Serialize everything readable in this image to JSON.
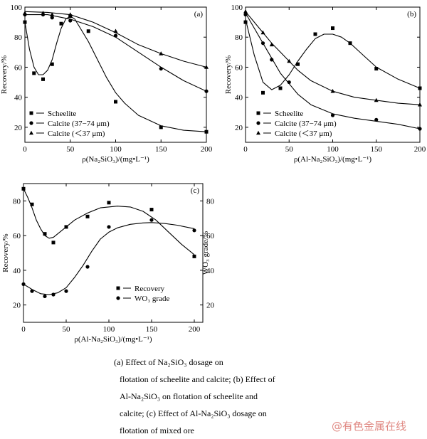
{
  "chart_data": [
    {
      "type": "line",
      "panel_label": "(a)",
      "xlabel": "ρ(Na₂SiO₃)/(mg•L⁻¹)",
      "ylabel": "Recovery/%",
      "xlim": [
        0,
        200
      ],
      "ylim": [
        10,
        100
      ],
      "xticks": [
        0,
        50,
        100,
        150,
        200
      ],
      "yticks": [
        20,
        40,
        60,
        80,
        100
      ],
      "legend": "bottom-left",
      "series": [
        {
          "name": "Scheelite",
          "marker": "square",
          "points": [
            [
              0,
              90
            ],
            [
              10,
              56
            ],
            [
              20,
              52
            ],
            [
              30,
              62
            ],
            [
              40,
              89
            ],
            [
              50,
              94
            ],
            [
              70,
              84
            ],
            [
              100,
              37
            ],
            [
              150,
              20
            ],
            [
              200,
              17
            ]
          ],
          "curve": [
            [
              0,
              90
            ],
            [
              5,
              72
            ],
            [
              10,
              60
            ],
            [
              15,
              55
            ],
            [
              20,
              55
            ],
            [
              25,
              58
            ],
            [
              30,
              65
            ],
            [
              35,
              76
            ],
            [
              40,
              86
            ],
            [
              45,
              92
            ],
            [
              50,
              94
            ],
            [
              55,
              92
            ],
            [
              60,
              87
            ],
            [
              70,
              77
            ],
            [
              80,
              65
            ],
            [
              90,
              53
            ],
            [
              100,
              43
            ],
            [
              110,
              36
            ],
            [
              125,
              28
            ],
            [
              150,
              21
            ],
            [
              175,
              18
            ],
            [
              200,
              17
            ]
          ]
        },
        {
          "name": "Calcite (37−74 μm)",
          "marker": "circle",
          "points": [
            [
              0,
              95
            ],
            [
              20,
              95
            ],
            [
              30,
              93
            ],
            [
              50,
              91
            ],
            [
              100,
              81
            ],
            [
              150,
              59
            ],
            [
              200,
              44
            ]
          ],
          "curve": [
            [
              0,
              95
            ],
            [
              25,
              95
            ],
            [
              50,
              92
            ],
            [
              75,
              87
            ],
            [
              100,
              80
            ],
            [
              125,
              70
            ],
            [
              150,
              60
            ],
            [
              175,
              51
            ],
            [
              200,
              44
            ]
          ]
        },
        {
          "name": "Calcite (＜37 μm)",
          "marker": "triangle",
          "points": [
            [
              0,
              96
            ],
            [
              20,
              96
            ],
            [
              30,
              95
            ],
            [
              50,
              95
            ],
            [
              100,
              84
            ],
            [
              150,
              69
            ],
            [
              200,
              60
            ]
          ],
          "curve": [
            [
              0,
              97
            ],
            [
              25,
              96.5
            ],
            [
              50,
              95
            ],
            [
              75,
              90
            ],
            [
              100,
              83
            ],
            [
              125,
              75
            ],
            [
              150,
              69
            ],
            [
              175,
              64
            ],
            [
              200,
              60
            ]
          ]
        }
      ]
    },
    {
      "type": "line",
      "panel_label": "(b)",
      "xlabel": "ρ(Al-Na₂SiO₃)/(mg•L⁻¹)",
      "ylabel": "Recovery/%",
      "xlim": [
        0,
        200
      ],
      "ylim": [
        10,
        100
      ],
      "xticks": [
        0,
        50,
        100,
        150,
        200
      ],
      "yticks": [
        20,
        40,
        60,
        80,
        100
      ],
      "legend": "bottom-left",
      "series": [
        {
          "name": "Scheelite",
          "marker": "square",
          "points": [
            [
              0,
              90
            ],
            [
              20,
              43
            ],
            [
              40,
              46
            ],
            [
              60,
              62
            ],
            [
              80,
              82
            ],
            [
              100,
              86
            ],
            [
              120,
              76
            ],
            [
              150,
              59
            ],
            [
              200,
              46
            ]
          ],
          "curve": [
            [
              0,
              92
            ],
            [
              10,
              68
            ],
            [
              20,
              50
            ],
            [
              30,
              45
            ],
            [
              40,
              48
            ],
            [
              50,
              55
            ],
            [
              60,
              64
            ],
            [
              70,
              72
            ],
            [
              80,
              79
            ],
            [
              90,
              82
            ],
            [
              100,
              82
            ],
            [
              110,
              80
            ],
            [
              120,
              76
            ],
            [
              135,
              68
            ],
            [
              150,
              60
            ],
            [
              175,
              52
            ],
            [
              200,
              46
            ]
          ]
        },
        {
          "name": "Calcite (37−74 μm)",
          "marker": "circle",
          "points": [
            [
              0,
              95
            ],
            [
              20,
              76
            ],
            [
              30,
              65
            ],
            [
              50,
              50
            ],
            [
              100,
              28
            ],
            [
              150,
              25
            ],
            [
              200,
              19
            ]
          ],
          "curve": [
            [
              0,
              96
            ],
            [
              10,
              86
            ],
            [
              20,
              76
            ],
            [
              30,
              66
            ],
            [
              40,
              56
            ],
            [
              50,
              49
            ],
            [
              60,
              42
            ],
            [
              75,
              35
            ],
            [
              100,
              29
            ],
            [
              125,
              26
            ],
            [
              150,
              24
            ],
            [
              175,
              22
            ],
            [
              200,
              19
            ]
          ]
        },
        {
          "name": "Calcite (＜37 μm)",
          "marker": "triangle",
          "points": [
            [
              0,
              97
            ],
            [
              20,
              83
            ],
            [
              30,
              75
            ],
            [
              50,
              64
            ],
            [
              100,
              44
            ],
            [
              150,
              38
            ],
            [
              200,
              35
            ]
          ],
          "curve": [
            [
              0,
              97
            ],
            [
              10,
              90
            ],
            [
              20,
              83
            ],
            [
              30,
              76
            ],
            [
              40,
              70
            ],
            [
              50,
              64
            ],
            [
              60,
              58
            ],
            [
              75,
              51
            ],
            [
              100,
              44
            ],
            [
              125,
              40
            ],
            [
              150,
              38
            ],
            [
              175,
              36
            ],
            [
              200,
              35
            ]
          ]
        }
      ]
    },
    {
      "type": "line",
      "panel_label": "(c)",
      "xlabel": "ρ(Al-Na₂SiO₃)/(mg•L⁻¹)",
      "ylabel": "Recovery/%",
      "ylabel_right": "WO₃ grade/%",
      "xlim": [
        0,
        210
      ],
      "ylim": [
        10,
        90
      ],
      "ylim_right": [
        10,
        90
      ],
      "xticks": [
        0,
        50,
        100,
        150,
        200
      ],
      "yticks": [
        20,
        40,
        60,
        80
      ],
      "yticks_right": [
        20,
        40,
        60,
        80
      ],
      "legend": "bottom-right",
      "series": [
        {
          "name": "Recovery",
          "marker": "square",
          "axis": "left",
          "points": [
            [
              0,
              87
            ],
            [
              10,
              78
            ],
            [
              25,
              61
            ],
            [
              35,
              56
            ],
            [
              50,
              65
            ],
            [
              75,
              71
            ],
            [
              100,
              79
            ],
            [
              150,
              75
            ],
            [
              200,
              48
            ]
          ],
          "curve": [
            [
              0,
              87
            ],
            [
              5,
              82
            ],
            [
              10,
              76
            ],
            [
              15,
              69
            ],
            [
              20,
              64
            ],
            [
              25,
              60
            ],
            [
              30,
              58.5
            ],
            [
              35,
              59
            ],
            [
              40,
              61
            ],
            [
              50,
              65
            ],
            [
              60,
              69
            ],
            [
              75,
              73
            ],
            [
              90,
              76
            ],
            [
              110,
              77
            ],
            [
              125,
              76.5
            ],
            [
              140,
              74
            ],
            [
              155,
              69
            ],
            [
              170,
              62
            ],
            [
              185,
              55
            ],
            [
              200,
              49
            ]
          ]
        },
        {
          "name": "WO₃ grade",
          "marker": "circle",
          "axis": "right",
          "points": [
            [
              0,
              32
            ],
            [
              10,
              28
            ],
            [
              25,
              25
            ],
            [
              35,
              26
            ],
            [
              50,
              28
            ],
            [
              75,
              42
            ],
            [
              100,
              65
            ],
            [
              150,
              69
            ],
            [
              200,
              63
            ]
          ],
          "curve": [
            [
              0,
              32
            ],
            [
              10,
              29
            ],
            [
              20,
              26.5
            ],
            [
              30,
              26
            ],
            [
              40,
              27
            ],
            [
              50,
              30
            ],
            [
              60,
              36
            ],
            [
              70,
              43
            ],
            [
              80,
              51
            ],
            [
              90,
              58
            ],
            [
              100,
              62
            ],
            [
              110,
              64.5
            ],
            [
              125,
              66.5
            ],
            [
              140,
              67.3
            ],
            [
              150,
              67.5
            ],
            [
              165,
              67
            ],
            [
              180,
              66
            ],
            [
              200,
              64
            ]
          ]
        }
      ]
    }
  ],
  "caption": {
    "lines": [
      "(a)  Effect  of  Na₂SiO₃  dosage  on",
      "flotation of scheelite and calcite; (b) Effect of",
      "Al-Na₂SiO₃  on  flotation  of  scheelite  and",
      "calcite; (c) Effect of Al-Na₂SiO₃ dosage on",
      "flotation of mixed ore"
    ]
  },
  "watermark": "@有色金属在线"
}
